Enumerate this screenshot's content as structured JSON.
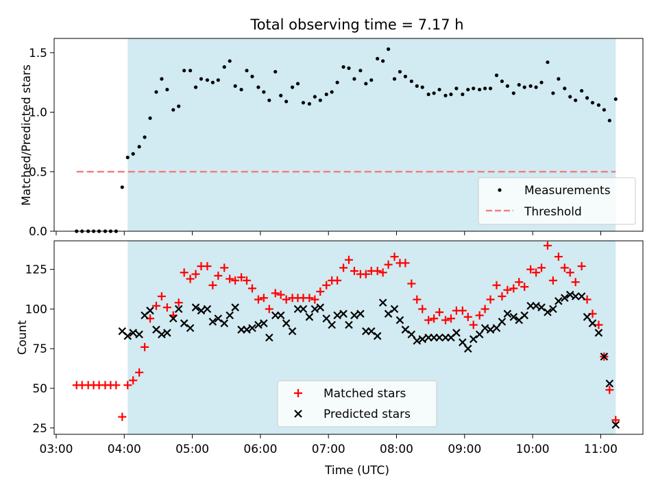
{
  "figure": {
    "title": "Total observing time = 7.17 h"
  },
  "chart_data": [
    {
      "type": "scatter",
      "ylabel": "Matched/Predicted stars",
      "xlabel": "",
      "ylim": [
        0,
        1.62
      ],
      "yticks": [
        0.0,
        0.5,
        1.0,
        1.5
      ],
      "ytick_labels": [
        "0.0",
        "0.5",
        "1.0",
        "1.5"
      ],
      "xlim_hours": [
        2.97,
        11.62
      ],
      "xticks_hours": [
        3,
        4,
        5,
        6,
        7,
        8,
        9,
        10,
        11
      ],
      "xtick_labels": [],
      "shaded_span_hours": [
        4.05,
        11.22
      ],
      "shade_color": "#add8e6",
      "grid": false,
      "legend_position": "lower right",
      "series": [
        {
          "name": "Measurements",
          "marker": "dot",
          "color": "#000000",
          "x": [
            3.3,
            3.38,
            3.47,
            3.55,
            3.63,
            3.72,
            3.8,
            3.88,
            3.97,
            4.05,
            4.13,
            4.22,
            4.3,
            4.38,
            4.47,
            4.55,
            4.63,
            4.72,
            4.8,
            4.88,
            4.97,
            5.05,
            5.13,
            5.22,
            5.3,
            5.38,
            5.47,
            5.55,
            5.63,
            5.72,
            5.8,
            5.88,
            5.97,
            6.05,
            6.13,
            6.22,
            6.3,
            6.38,
            6.47,
            6.55,
            6.63,
            6.72,
            6.8,
            6.88,
            6.97,
            7.05,
            7.13,
            7.22,
            7.3,
            7.38,
            7.47,
            7.55,
            7.63,
            7.72,
            7.8,
            7.88,
            7.97,
            8.05,
            8.13,
            8.22,
            8.3,
            8.38,
            8.47,
            8.55,
            8.63,
            8.72,
            8.8,
            8.88,
            8.97,
            9.05,
            9.13,
            9.22,
            9.3,
            9.38,
            9.47,
            9.55,
            9.63,
            9.72,
            9.8,
            9.88,
            9.97,
            10.05,
            10.13,
            10.22,
            10.3,
            10.38,
            10.47,
            10.55,
            10.63,
            10.72,
            10.8,
            10.88,
            10.97,
            11.05,
            11.13,
            11.22
          ],
          "y": [
            0,
            0,
            0,
            0,
            0,
            0,
            0,
            0,
            0.37,
            0.62,
            0.65,
            0.71,
            0.79,
            0.95,
            1.17,
            1.28,
            1.19,
            1.02,
            1.05,
            1.35,
            1.35,
            1.21,
            1.28,
            1.27,
            1.25,
            1.27,
            1.38,
            1.43,
            1.22,
            1.19,
            1.35,
            1.3,
            1.21,
            1.17,
            1.1,
            1.34,
            1.14,
            1.09,
            1.21,
            1.24,
            1.08,
            1.07,
            1.13,
            1.1,
            1.15,
            1.17,
            1.25,
            1.38,
            1.37,
            1.28,
            1.35,
            1.24,
            1.27,
            1.45,
            1.43,
            1.53,
            1.28,
            1.34,
            1.3,
            1.26,
            1.22,
            1.21,
            1.15,
            1.16,
            1.19,
            1.14,
            1.15,
            1.2,
            1.15,
            1.19,
            1.2,
            1.19,
            1.2,
            1.2,
            1.31,
            1.26,
            1.22,
            1.16,
            1.23,
            1.21,
            1.22,
            1.21,
            1.25,
            1.42,
            1.16,
            1.28,
            1.2,
            1.13,
            1.1,
            1.18,
            1.12,
            1.08,
            1.06,
            1.02,
            0.93,
            1.11
          ]
        },
        {
          "name": "Threshold",
          "marker": "dashed-line",
          "color": "#f08080",
          "x": [
            3.3,
            11.22
          ],
          "y": [
            0.5,
            0.5
          ]
        }
      ]
    },
    {
      "type": "scatter",
      "ylabel": "Count",
      "xlabel": "Time (UTC)",
      "ylim": [
        21,
        143
      ],
      "yticks": [
        25,
        50,
        75,
        100,
        125
      ],
      "ytick_labels": [
        "25",
        "50",
        "75",
        "100",
        "125"
      ],
      "xlim_hours": [
        2.97,
        11.62
      ],
      "xticks_hours": [
        3,
        4,
        5,
        6,
        7,
        8,
        9,
        10,
        11
      ],
      "xtick_labels": [
        "03:00",
        "04:00",
        "05:00",
        "06:00",
        "07:00",
        "08:00",
        "09:00",
        "10:00",
        "11:00"
      ],
      "shaded_span_hours": [
        4.05,
        11.22
      ],
      "shade_color": "#add8e6",
      "grid": false,
      "legend_position": "lower center",
      "series": [
        {
          "name": "Matched stars",
          "marker": "plus",
          "color": "#ff0000",
          "x": [
            3.3,
            3.38,
            3.47,
            3.55,
            3.63,
            3.72,
            3.8,
            3.88,
            3.97,
            4.05,
            4.13,
            4.22,
            4.3,
            4.38,
            4.47,
            4.55,
            4.63,
            4.72,
            4.8,
            4.88,
            4.97,
            5.05,
            5.13,
            5.22,
            5.3,
            5.38,
            5.47,
            5.55,
            5.63,
            5.72,
            5.8,
            5.88,
            5.97,
            6.05,
            6.13,
            6.22,
            6.3,
            6.38,
            6.47,
            6.55,
            6.63,
            6.72,
            6.8,
            6.88,
            6.97,
            7.05,
            7.13,
            7.22,
            7.3,
            7.38,
            7.47,
            7.55,
            7.63,
            7.72,
            7.8,
            7.88,
            7.97,
            8.05,
            8.13,
            8.22,
            8.3,
            8.38,
            8.47,
            8.55,
            8.63,
            8.72,
            8.8,
            8.88,
            8.97,
            9.05,
            9.13,
            9.22,
            9.3,
            9.38,
            9.47,
            9.55,
            9.63,
            9.72,
            9.8,
            9.88,
            9.97,
            10.05,
            10.13,
            10.22,
            10.3,
            10.38,
            10.47,
            10.55,
            10.63,
            10.72,
            10.8,
            10.88,
            10.97,
            11.05,
            11.13,
            11.22
          ],
          "y": [
            52,
            52,
            52,
            52,
            52,
            52,
            52,
            52,
            32,
            52,
            55,
            60,
            76,
            94,
            102,
            108,
            101,
            96,
            104,
            123,
            119,
            122,
            127,
            127,
            115,
            121,
            126,
            119,
            118,
            120,
            118,
            113,
            106,
            107,
            100,
            110,
            109,
            106,
            107,
            107,
            107,
            107,
            106,
            111,
            115,
            118,
            118,
            126,
            131,
            124,
            122,
            122,
            124,
            124,
            123,
            128,
            133,
            129,
            129,
            116,
            106,
            100,
            93,
            94,
            98,
            93,
            94,
            99,
            99,
            95,
            90,
            96,
            100,
            106,
            115,
            108,
            112,
            113,
            117,
            114,
            125,
            123,
            126,
            140,
            118,
            133,
            126,
            123,
            117,
            127,
            106,
            97,
            90,
            70,
            49,
            30
          ]
        },
        {
          "name": "Predicted stars",
          "marker": "x",
          "color": "#000000",
          "x": [
            3.97,
            4.05,
            4.13,
            4.22,
            4.3,
            4.38,
            4.47,
            4.55,
            4.63,
            4.72,
            4.8,
            4.88,
            4.97,
            5.05,
            5.13,
            5.22,
            5.3,
            5.38,
            5.47,
            5.55,
            5.63,
            5.72,
            5.8,
            5.88,
            5.97,
            6.05,
            6.13,
            6.22,
            6.3,
            6.38,
            6.47,
            6.55,
            6.63,
            6.72,
            6.8,
            6.88,
            6.97,
            7.05,
            7.13,
            7.22,
            7.3,
            7.38,
            7.47,
            7.55,
            7.63,
            7.72,
            7.8,
            7.88,
            7.97,
            8.05,
            8.13,
            8.22,
            8.3,
            8.38,
            8.47,
            8.55,
            8.63,
            8.72,
            8.8,
            8.88,
            8.97,
            9.05,
            9.13,
            9.22,
            9.3,
            9.38,
            9.47,
            9.55,
            9.63,
            9.72,
            9.8,
            9.88,
            9.97,
            10.05,
            10.13,
            10.22,
            10.3,
            10.38,
            10.47,
            10.55,
            10.63,
            10.72,
            10.8,
            10.88,
            10.97,
            11.05,
            11.13,
            11.22
          ],
          "y": [
            86,
            83,
            85,
            84,
            96,
            99,
            87,
            84,
            85,
            94,
            100,
            91,
            88,
            101,
            99,
            100,
            92,
            94,
            91,
            96,
            101,
            87,
            87,
            88,
            90,
            91,
            82,
            96,
            96,
            91,
            86,
            100,
            100,
            95,
            100,
            101,
            94,
            90,
            96,
            97,
            90,
            96,
            97,
            86,
            86,
            83,
            104,
            97,
            100,
            93,
            87,
            84,
            80,
            81,
            82,
            82,
            82,
            82,
            82,
            85,
            79,
            75,
            81,
            84,
            88,
            87,
            88,
            92,
            97,
            95,
            93,
            96,
            102,
            102,
            101,
            98,
            100,
            105,
            107,
            109,
            108,
            108,
            95,
            91,
            85,
            70,
            53,
            27
          ]
        }
      ]
    }
  ]
}
